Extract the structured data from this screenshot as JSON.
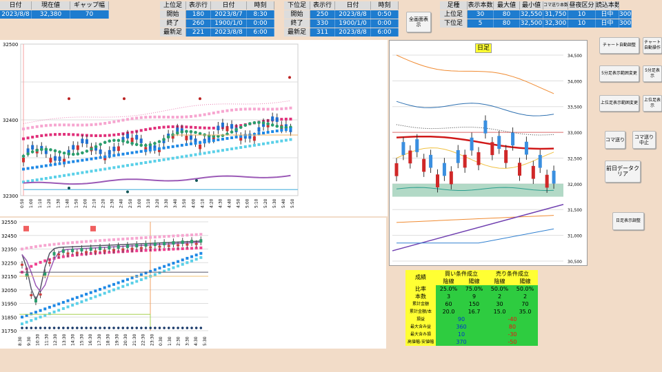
{
  "top_left": {
    "headers": [
      "日付",
      "現在値",
      "ギャップ幅"
    ],
    "values": [
      "2023/8/8",
      "32,380",
      "70"
    ]
  },
  "upper_group": {
    "headers": [
      "上位足",
      "表示行",
      "日付",
      "時刻"
    ],
    "rows": [
      {
        "label": "開始",
        "rowval": "180",
        "date": "2023/8/7",
        "time": "8:30"
      },
      {
        "label": "終了",
        "rowval": "260",
        "date": "1900/1/0",
        "time": "0:00"
      },
      {
        "label": "最新足",
        "rowval": "221",
        "date": "2023/8/8",
        "time": "6:00"
      }
    ]
  },
  "lower_group": {
    "headers": [
      "下位足",
      "表示行",
      "日付",
      "時刻"
    ],
    "rows": [
      {
        "label": "開始",
        "rowval": "250",
        "date": "2023/8/8",
        "time": "0:50"
      },
      {
        "label": "終了",
        "rowval": "330",
        "date": "1900/1/0",
        "time": "0:00"
      },
      {
        "label": "最新足",
        "rowval": "311",
        "date": "2023/8/8",
        "time": "6:00"
      }
    ]
  },
  "fullscreen_button": "全画面表示",
  "right_table": {
    "headers": [
      "足種",
      "表示本数",
      "最大値",
      "最小値",
      "コマ送り本数",
      "昼夜区分",
      "読込本数"
    ],
    "rows": [
      {
        "label": "上位足",
        "values": [
          "30",
          "80",
          "32,550",
          "31,750",
          "10",
          "日中",
          "300"
        ]
      },
      {
        "label": "下位足",
        "values": [
          "5",
          "80",
          "32,500",
          "32,300",
          "10",
          "日中",
          "300"
        ]
      }
    ]
  },
  "buttons": {
    "chart_auto": "チャート自動調整",
    "chart_auto2": "チャート自動操作",
    "five_min_range": "5分足表示範囲変更",
    "five_min_range2": "5分足表示",
    "upper_range": "上位足表示範囲変更",
    "upper_range2": "上位足表示",
    "koma": "コマ送り",
    "koma_stop": "コマ送り中止",
    "prev_day_clear": "前日データクリア",
    "daily_toggle": "日足表示調整"
  },
  "daily_chart": {
    "title": "日足",
    "yticks": [
      "34,500",
      "34,000",
      "33,500",
      "33,000",
      "32,500",
      "32,000",
      "31,500",
      "31,000",
      "30,500"
    ]
  },
  "stats": {
    "title": "成績",
    "buy_header": "買い条件成立",
    "sell_header": "売り条件成立",
    "sub": [
      "陰線",
      "陽線",
      "陰線",
      "陽線"
    ],
    "rows": [
      {
        "label": "比率",
        "values": [
          "25.0%",
          "75.0%",
          "50.0%",
          "50.0%"
        ]
      },
      {
        "label": "本数",
        "values": [
          "3",
          "9",
          "2",
          "2"
        ]
      },
      {
        "label": "累計金額",
        "values": [
          "60",
          "150",
          "30",
          "70"
        ]
      },
      {
        "label": "累計金額/本",
        "values": [
          "20.0",
          "16.7",
          "15.0",
          "35.0"
        ]
      }
    ],
    "summary": [
      {
        "label": "損益",
        "buy": "90",
        "sell": "-40"
      },
      {
        "label": "最大含み益",
        "buy": "360",
        "sell": "80"
      },
      {
        "label": "最大含み損",
        "buy": "10",
        "sell": "-30"
      },
      {
        "label": "高値幅-安値幅",
        "buy": "370",
        "sell": "-50"
      }
    ]
  },
  "chart_data": [
    {
      "type": "line",
      "yticks": [
        "32500",
        "32400",
        "32300"
      ],
      "ylim": [
        32300,
        32500
      ],
      "xticks": [
        "0:50",
        "1:00",
        "1:10",
        "1:20",
        "1:30",
        "1:40",
        "1:50",
        "2:00",
        "2:10",
        "2:20",
        "2:30",
        "2:40",
        "2:50",
        "3:00",
        "3:10",
        "3:20",
        "3:30",
        "3:40",
        "3:50",
        "4:00",
        "4:10",
        "4:20",
        "4:30",
        "4:40",
        "4:50",
        "5:00",
        "5:10",
        "5:20",
        "5:30",
        "5:40",
        "5:50"
      ]
    },
    {
      "type": "line",
      "yticks": [
        "32550",
        "32450",
        "32350",
        "32250",
        "32150",
        "32050",
        "31950",
        "31850",
        "31750"
      ],
      "ylim": [
        31750,
        32550
      ],
      "xticks": [
        "8:30",
        "9:30",
        "10:30",
        "11:30",
        "12:30",
        "13:30",
        "14:30",
        "15:30",
        "16:30",
        "17:30",
        "18:30",
        "19:30",
        "20:30",
        "21:30",
        "22:30",
        "23:30",
        "0:30",
        "1:30",
        "2:30",
        "3:30",
        "4:30",
        "5:30"
      ]
    }
  ]
}
